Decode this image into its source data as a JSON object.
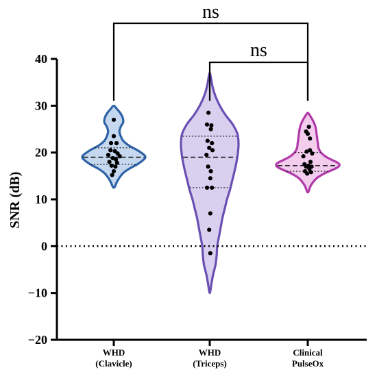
{
  "chart_data": {
    "type": "violin",
    "ylabel": "SNR (dB)",
    "ylim": [
      -20,
      40
    ],
    "yticks": [
      40,
      30,
      20,
      10,
      0,
      -10,
      -20
    ],
    "ytick_labels": [
      "40",
      "30",
      "20",
      "10",
      "0",
      "−10",
      "−20"
    ],
    "reference_line": 0,
    "categories": [
      [
        "WHD",
        "(Clavicle)"
      ],
      [
        "WHD",
        "(Triceps)"
      ],
      [
        "Clinical",
        "PulseOx"
      ]
    ],
    "series": [
      {
        "colors": {
          "stroke": "#2e62a6",
          "fill": "#c6d8ef"
        },
        "median": 19,
        "q1": 17.5,
        "q3": 21,
        "range": [
          12.5,
          30
        ],
        "profile": [
          [
            12.5,
            0.0
          ],
          [
            14,
            0.12
          ],
          [
            15.5,
            0.28
          ],
          [
            16.5,
            0.48
          ],
          [
            17.5,
            0.75
          ],
          [
            18.5,
            0.95
          ],
          [
            19,
            1.0
          ],
          [
            19.5,
            0.96
          ],
          [
            20.5,
            0.75
          ],
          [
            21.5,
            0.48
          ],
          [
            22.5,
            0.3
          ],
          [
            23.5,
            0.22
          ],
          [
            24.5,
            0.18
          ],
          [
            25.5,
            0.22
          ],
          [
            26.5,
            0.3
          ],
          [
            27.5,
            0.28
          ],
          [
            28.5,
            0.2
          ],
          [
            29.3,
            0.1
          ],
          [
            30,
            0.0
          ]
        ],
        "points": [
          [
            27,
            0
          ],
          [
            23.5,
            0
          ],
          [
            22,
            -0.25
          ],
          [
            22,
            0.25
          ],
          [
            20.5,
            -0.3
          ],
          [
            20.3,
            0.1
          ],
          [
            19.8,
            0.35
          ],
          [
            19.5,
            -0.5
          ],
          [
            19.2,
            0.55
          ],
          [
            18.8,
            -0.1
          ],
          [
            18.5,
            0.2
          ],
          [
            18,
            -0.4
          ],
          [
            17.8,
            0.3
          ],
          [
            17.2,
            -0.2
          ],
          [
            17,
            0.15
          ],
          [
            16,
            0
          ],
          [
            15.2,
            -0.15
          ]
        ]
      },
      {
        "colors": {
          "stroke": "#6a4fb3",
          "fill": "#d9d0ef"
        },
        "median": 19,
        "q1": 12.5,
        "q3": 23.5,
        "range": [
          -10,
          37
        ],
        "profile": [
          [
            -10,
            0.0
          ],
          [
            -8,
            0.06
          ],
          [
            -6,
            0.12
          ],
          [
            -4,
            0.2
          ],
          [
            -2,
            0.24
          ],
          [
            0,
            0.26
          ],
          [
            2,
            0.32
          ],
          [
            4,
            0.38
          ],
          [
            6,
            0.44
          ],
          [
            8,
            0.52
          ],
          [
            10,
            0.6
          ],
          [
            12,
            0.7
          ],
          [
            14,
            0.78
          ],
          [
            16,
            0.86
          ],
          [
            18,
            0.93
          ],
          [
            20,
            0.98
          ],
          [
            22,
            1.0
          ],
          [
            24,
            0.96
          ],
          [
            26,
            0.8
          ],
          [
            28,
            0.55
          ],
          [
            30,
            0.35
          ],
          [
            32,
            0.2
          ],
          [
            34,
            0.1
          ],
          [
            36,
            0.04
          ],
          [
            37,
            0.0
          ]
        ],
        "points": [
          [
            28.5,
            -0.12
          ],
          [
            26,
            -0.25
          ],
          [
            25.8,
            0.15
          ],
          [
            25,
            0.1
          ],
          [
            22.5,
            -0.2
          ],
          [
            22,
            0.2
          ],
          [
            21,
            -0.05
          ],
          [
            20.5,
            0.25
          ],
          [
            19.5,
            -0.3
          ],
          [
            17,
            -0.15
          ],
          [
            16,
            0.1
          ],
          [
            14.5,
            0.05
          ],
          [
            12.5,
            -0.25
          ],
          [
            12.5,
            0.2
          ],
          [
            7,
            0.05
          ],
          [
            3.5,
            -0.05
          ],
          [
            -1.5,
            0.05
          ]
        ]
      },
      {
        "colors": {
          "stroke": "#b03aa8",
          "fill": "#f2cdee"
        },
        "median": 17.2,
        "q1": 16,
        "q3": 20,
        "range": [
          11.5,
          28.5
        ],
        "profile": [
          [
            11.5,
            0.0
          ],
          [
            13,
            0.1
          ],
          [
            14.5,
            0.28
          ],
          [
            15.5,
            0.52
          ],
          [
            16.5,
            0.85
          ],
          [
            17,
            0.98
          ],
          [
            17.5,
            1.0
          ],
          [
            18,
            0.9
          ],
          [
            19,
            0.6
          ],
          [
            20,
            0.42
          ],
          [
            21,
            0.34
          ],
          [
            22,
            0.32
          ],
          [
            23,
            0.3
          ],
          [
            24,
            0.28
          ],
          [
            25,
            0.26
          ],
          [
            26,
            0.22
          ],
          [
            27,
            0.15
          ],
          [
            28,
            0.06
          ],
          [
            28.5,
            0.0
          ]
        ],
        "points": [
          [
            25.5,
            0.1
          ],
          [
            24.5,
            -0.15
          ],
          [
            24,
            0
          ],
          [
            23,
            0.2
          ],
          [
            20.5,
            0.2
          ],
          [
            20.2,
            -0.1
          ],
          [
            19.8,
            0.4
          ],
          [
            19.2,
            -0.4
          ],
          [
            18,
            0.25
          ],
          [
            17.5,
            -0.3
          ],
          [
            17.2,
            0.05
          ],
          [
            17,
            -0.15
          ],
          [
            17,
            0.35
          ],
          [
            16.5,
            0.15
          ],
          [
            16,
            -0.25
          ],
          [
            15.8,
            0.3
          ],
          [
            15.5,
            -0.05
          ]
        ]
      }
    ],
    "significance": [
      {
        "pair": [
          0,
          2
        ],
        "label": "ns"
      },
      {
        "pair": [
          1,
          2
        ],
        "label": "ns"
      }
    ]
  }
}
